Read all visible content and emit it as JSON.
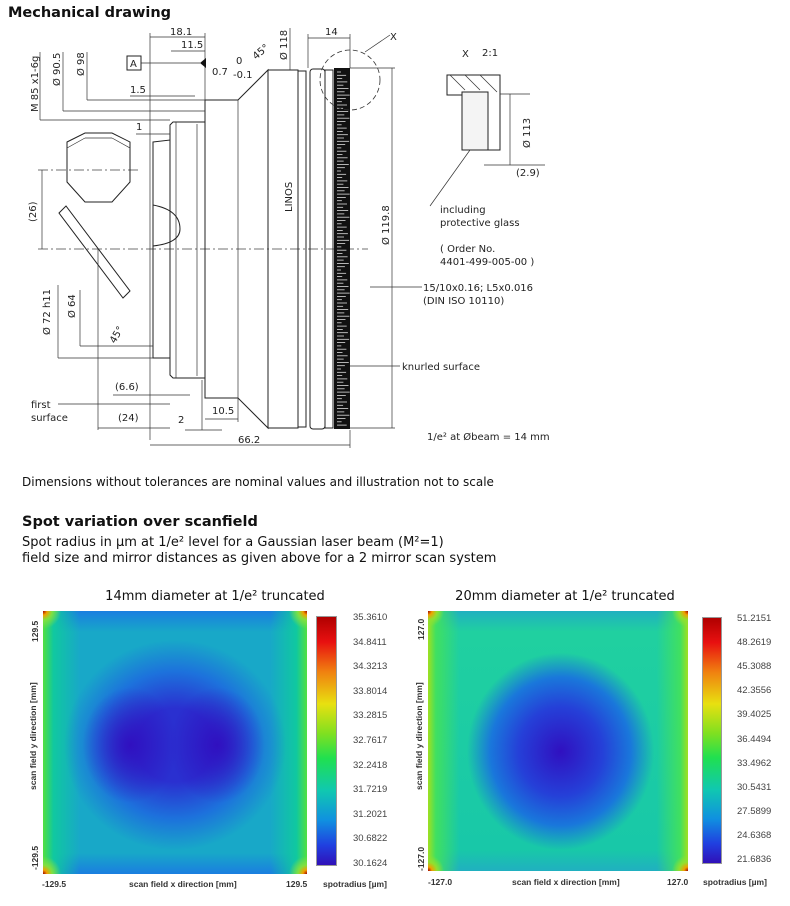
{
  "section1": {
    "title": "Mechanical drawing",
    "note": "Dimensions without tolerances are nominal values and illustration not to scale"
  },
  "drawing": {
    "dims": {
      "d18_1": "18.1",
      "d11_5": "11.5",
      "datum": "A",
      "d0_7": "0.7",
      "tol_up": "0",
      "tol_low": "-0.1",
      "angle_top": "45°",
      "d118": "Ø 118",
      "d14": "14",
      "detail_mark": "X",
      "detail_title": "X",
      "detail_scale": "2:1",
      "m85": "M 85 x1-6g",
      "d90_5": "Ø 90.5",
      "d98": "Ø 98",
      "d1_5": "1.5",
      "d1": "1",
      "d26": "(26)",
      "d72": "Ø 72 h11",
      "d64": "Ø 64",
      "angle_bottom": "45°",
      "d6_6": "(6.6)",
      "first_surface_1": "first",
      "first_surface_2": "surface",
      "d24": "(24)",
      "d2": "2",
      "d10_5": "10.5",
      "d66_2": "66.2",
      "brand": "LINOS",
      "d119_8": "Ø 119.8",
      "d113": "Ø 113",
      "d2_9": "(2.9)"
    },
    "notes": {
      "glass_1": "including",
      "glass_2": "protective glass",
      "order_1": "( Order No.",
      "order_2": "4401-499-005-00 )",
      "tol_1": "15/10x0.16; L5x0.016",
      "tol_2": "(DIN ISO 10110)",
      "knurl": "knurled surface",
      "beam": "1/e² at Øbeam = 14 mm"
    }
  },
  "section2": {
    "title": "Spot variation over scanfield",
    "line1": "Spot radius in µm at 1/e² level for a Gaussian laser beam (M²=1)",
    "line2": "field size and mirror distances as given above for a 2 mirror scan system"
  },
  "chart_data": [
    {
      "type": "heatmap",
      "title": "14mm diameter at 1/e² truncated",
      "xlabel": "scan field x direction [mm]",
      "ylabel": "scan field y direction [mm]",
      "xlim": [
        -129.5,
        129.5
      ],
      "ylim": [
        -129.5,
        129.5
      ],
      "x_ticks": [
        "-129.5",
        "129.5"
      ],
      "y_ticks": [
        "129.5",
        "-129.5"
      ],
      "colorbar_label": "spotradius [µm]",
      "colorbar_ticks": [
        "35.3610",
        "34.8411",
        "34.3213",
        "33.8014",
        "33.2815",
        "32.7617",
        "32.2418",
        "31.7219",
        "31.2021",
        "30.6822",
        "30.1624"
      ],
      "value_range": [
        30.1624,
        35.361
      ],
      "colormap": "jet",
      "pattern": "two minima left and right of center, maxima at the four corners"
    },
    {
      "type": "heatmap",
      "title": "20mm diameter at 1/e² truncated",
      "xlabel": "scan field x direction [mm]",
      "ylabel": "scan field y direction [mm]",
      "xlim": [
        -127.0,
        127.0
      ],
      "ylim": [
        -127.0,
        127.0
      ],
      "x_ticks": [
        "-127.0",
        "127.0"
      ],
      "y_ticks": [
        "127.0",
        "-127.0"
      ],
      "colorbar_label": "spotradius [µm]",
      "colorbar_ticks": [
        "51.2151",
        "48.2619",
        "45.3088",
        "42.3556",
        "39.4025",
        "36.4494",
        "33.4962",
        "30.5431",
        "27.5899",
        "24.6368",
        "21.6836"
      ],
      "value_range": [
        21.6836,
        51.2151
      ],
      "colormap": "jet",
      "pattern": "single minimum at center, maxima at the four corners"
    }
  ]
}
